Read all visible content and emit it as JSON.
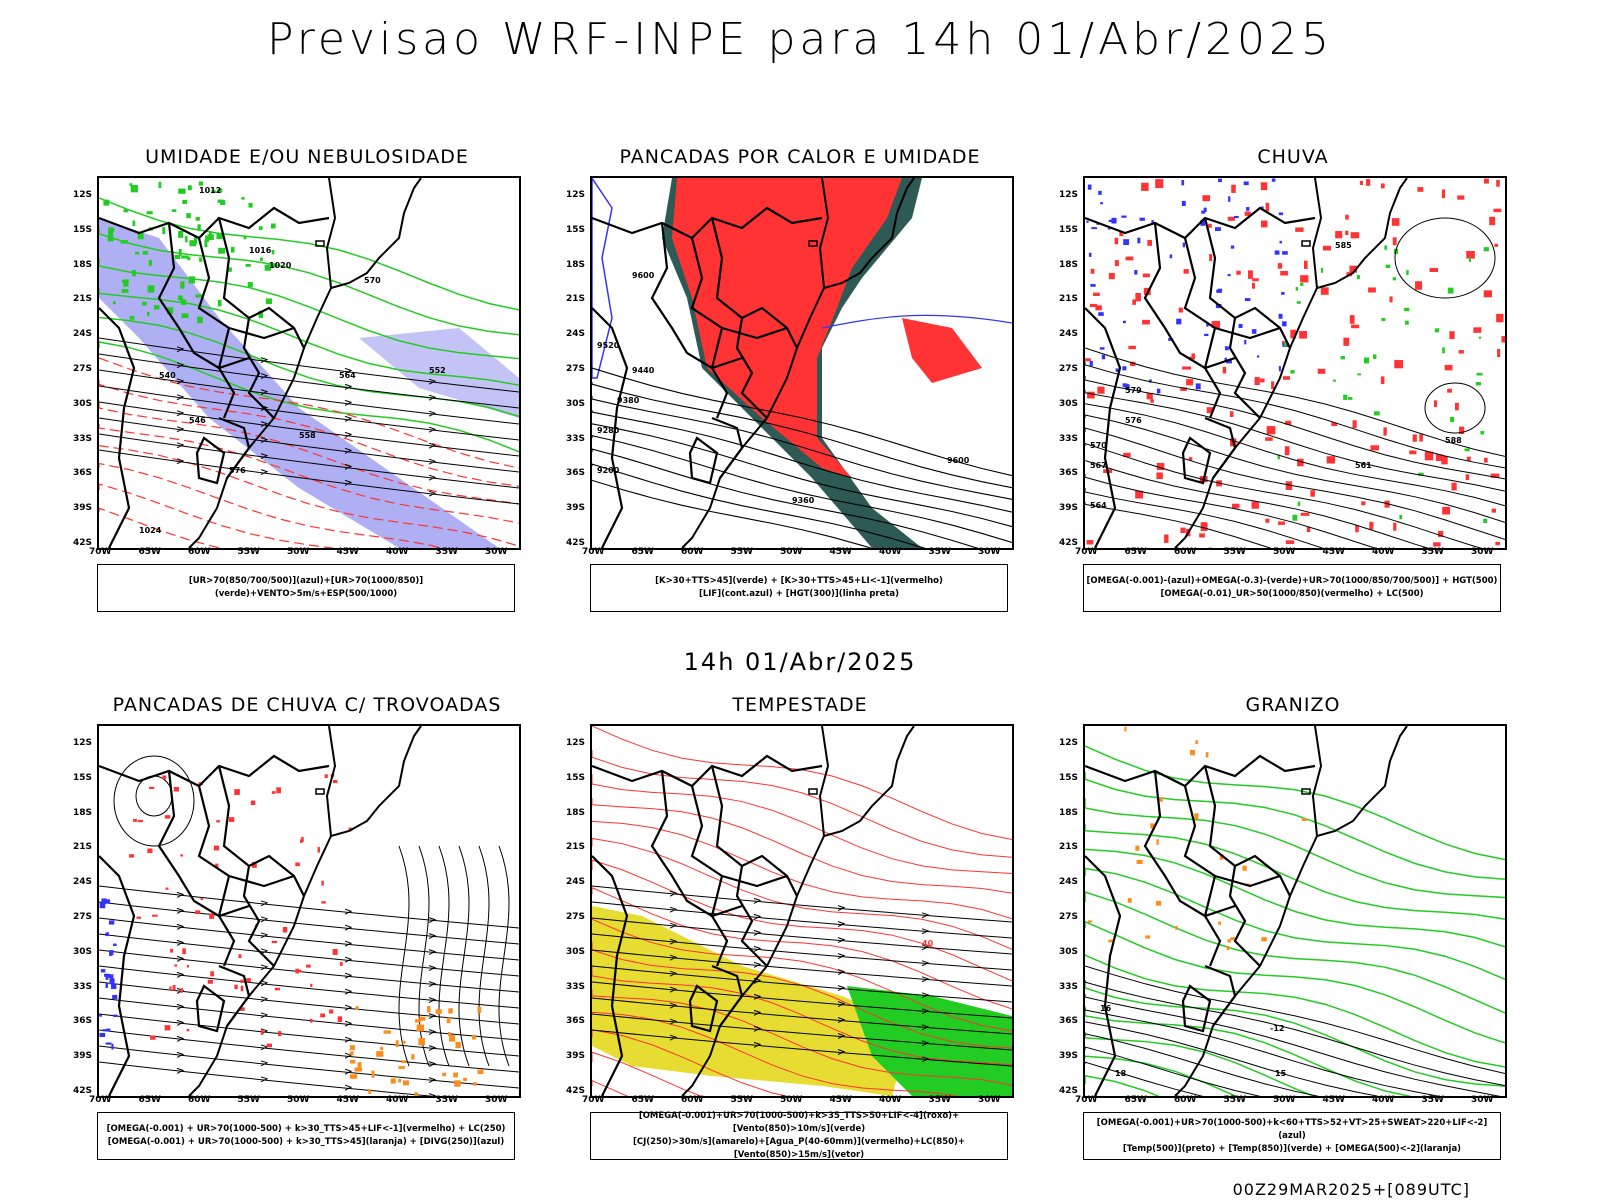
{
  "header": {
    "title": "Previsao WRF-INPE  para 14h 01/Abr/2025"
  },
  "mid_time": "14h 01/Abr/2025",
  "footer": "00Z29MAR2025+[089UTC]",
  "axes": {
    "lat_labels": [
      "12S",
      "15S",
      "18S",
      "21S",
      "24S",
      "27S",
      "30S",
      "33S",
      "36S",
      "39S",
      "42S"
    ],
    "lon_labels": [
      "70W",
      "65W",
      "60W",
      "55W",
      "50W",
      "45W",
      "40W",
      "35W",
      "30W"
    ]
  },
  "colors": {
    "blue": "#3333ff",
    "green": "#22cc22",
    "red": "#ff3333",
    "darkteal": "#2d5a55",
    "yellow": "#e6dc32",
    "orange": "#ff8c1a",
    "lavender": "#9b9bf0"
  },
  "panels": [
    {
      "id": "p1",
      "title": "UMIDADE E/OU NEBULOSIDADE",
      "legend": [
        "[UR>70(850/700/500)](azul)+[UR>70(1000/850)](verde)+VENTO>5m/s+ESP(500/1000)"
      ],
      "contour_labels": [
        "1012",
        "1016",
        "1020",
        "1024",
        "576",
        "570",
        "564",
        "558",
        "552",
        "546",
        "540"
      ]
    },
    {
      "id": "p2",
      "title": "PANCADAS POR CALOR E UMIDADE",
      "legend": [
        "[K>30+TTS>45](verde)  +  [K>30+TTS>45+LI<-1](vermelho)",
        "[LIF](cont.azul)  +  [HGT(300)](linha preta)"
      ],
      "contour_labels": [
        "9600",
        "9520",
        "9440",
        "9380",
        "9280",
        "9200",
        "9360",
        "9600"
      ]
    },
    {
      "id": "p3",
      "title": "CHUVA",
      "legend": [
        "[OMEGA(-0.001)-(azul)+OMEGA(-0.3)-(verde)+UR>70(1000/850/700/500)]  +  HGT(500)",
        "[OMEGA(-0.01)_UR>50(1000/850)(vermelho)  +  LC(500)"
      ],
      "contour_labels": [
        "585",
        "579",
        "576",
        "570",
        "567",
        "564",
        "561",
        "588"
      ]
    },
    {
      "id": "p4",
      "title": "PANCADAS DE CHUVA C/ TROVOADAS",
      "legend": [
        "[OMEGA(-0.001)  +  UR>70(1000-500)  +  k>30_TTS>45+LIF<-1](vermelho)  +  LC(250)",
        "[OMEGA(-0.001)  +  UR>70(1000-500)  +  k>30_TTS>45](laranja)  +  [DIVG(250)](azul)"
      ]
    },
    {
      "id": "p5",
      "title": "TEMPESTADE",
      "legend": [
        "[OMEGA(-0.001)+UR>70(1000-500)+k>35_TTS>50+LIF<-4](roxo)+[Vento(850)>10m/s](verde)",
        "[CJ(250)>30m/s](amarelo)+[Agua_P(40-60mm)](vermelho)+LC(850)+[Vento(850)>15m/s](vetor)"
      ],
      "contour_labels": [
        "40"
      ]
    },
    {
      "id": "p6",
      "title": "GRANIZO",
      "legend": [
        "[OMEGA(-0.001)+UR>70(1000-500)+k<60+TTS>52+VT>25+SWEAT>220+LIF<-2](azul)",
        "[Temp(500)](preto)  +  [Temp(850)](verde)  +  [OMEGA(500)<-2](laranja)"
      ],
      "contour_labels": [
        "-12",
        "16",
        "15",
        "18"
      ]
    }
  ]
}
